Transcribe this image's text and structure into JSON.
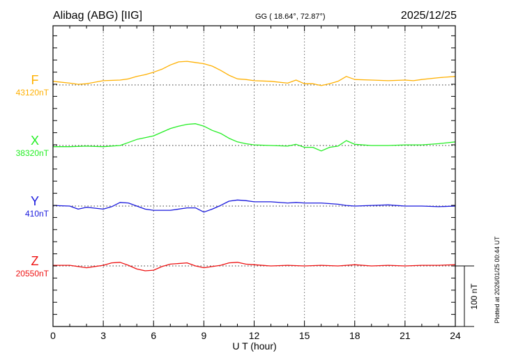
{
  "chart_data": {
    "type": "line",
    "title": "Alibag (ABG)  [IIG]",
    "subtitle": "GG ( 18.64°,  72.87°)",
    "date": "2025/12/25",
    "xlabel": "U T (hour)",
    "xlim": [
      0,
      24
    ],
    "xticks": [
      "0",
      "3",
      "6",
      "9",
      "12",
      "15",
      "18",
      "21",
      "24"
    ],
    "scale_bar_label": "100 nT",
    "scale_bar_nT": 100,
    "plotted_note": "Plotted at 2026/01/25 00:44 UT",
    "grid": "dotted vertical every 3 h, dotted baselines",
    "series": [
      {
        "name": "F",
        "baseline_label": "43120nT",
        "color": "#ffb000",
        "points": [
          [
            0,
            6
          ],
          [
            1,
            3
          ],
          [
            1.5,
            1
          ],
          [
            2,
            2
          ],
          [
            3,
            7
          ],
          [
            4,
            8
          ],
          [
            4.5,
            10
          ],
          [
            5,
            14
          ],
          [
            5.5,
            17
          ],
          [
            6,
            21
          ],
          [
            6.5,
            26
          ],
          [
            7,
            33
          ],
          [
            7.5,
            38
          ],
          [
            8,
            39
          ],
          [
            8.5,
            37
          ],
          [
            9,
            35
          ],
          [
            9.5,
            31
          ],
          [
            10,
            24
          ],
          [
            10.5,
            16
          ],
          [
            11,
            10
          ],
          [
            11.5,
            9
          ],
          [
            12,
            7
          ],
          [
            13,
            6
          ],
          [
            14,
            3
          ],
          [
            14.5,
            8
          ],
          [
            15,
            2
          ],
          [
            15.5,
            2
          ],
          [
            16,
            -1
          ],
          [
            16.5,
            2
          ],
          [
            17,
            6
          ],
          [
            17.5,
            14
          ],
          [
            18,
            9
          ],
          [
            19,
            8
          ],
          [
            20,
            7
          ],
          [
            21,
            8
          ],
          [
            21.5,
            7
          ],
          [
            22,
            9
          ],
          [
            23,
            12
          ],
          [
            24,
            14
          ]
        ]
      },
      {
        "name": "X",
        "baseline_label": "38320nT",
        "color": "#22ee22",
        "points": [
          [
            0,
            -2
          ],
          [
            1,
            -2
          ],
          [
            2,
            -1
          ],
          [
            3,
            -2
          ],
          [
            4,
            0
          ],
          [
            4.5,
            5
          ],
          [
            5,
            10
          ],
          [
            5.5,
            13
          ],
          [
            6,
            16
          ],
          [
            6.5,
            22
          ],
          [
            7,
            28
          ],
          [
            7.5,
            32
          ],
          [
            8,
            35
          ],
          [
            8.5,
            36
          ],
          [
            9,
            32
          ],
          [
            9.5,
            25
          ],
          [
            10,
            20
          ],
          [
            10.5,
            12
          ],
          [
            11,
            6
          ],
          [
            11.5,
            3
          ],
          [
            12,
            1
          ],
          [
            13,
            0
          ],
          [
            14,
            -1
          ],
          [
            14.5,
            2
          ],
          [
            15,
            -3
          ],
          [
            15.5,
            -3
          ],
          [
            16,
            -9
          ],
          [
            16.5,
            -3
          ],
          [
            17,
            -1
          ],
          [
            17.5,
            8
          ],
          [
            18,
            2
          ],
          [
            19,
            0
          ],
          [
            20,
            0
          ],
          [
            21,
            1
          ],
          [
            22,
            1
          ],
          [
            23,
            3
          ],
          [
            24,
            6
          ]
        ]
      },
      {
        "name": "Y",
        "baseline_label": "410nT",
        "color": "#1818dd",
        "points": [
          [
            0,
            1
          ],
          [
            1,
            0
          ],
          [
            1.5,
            -5
          ],
          [
            2,
            -2
          ],
          [
            3,
            -5
          ],
          [
            3.5,
            -1
          ],
          [
            4,
            6
          ],
          [
            4.5,
            5
          ],
          [
            5,
            0
          ],
          [
            5.5,
            -5
          ],
          [
            6,
            -7
          ],
          [
            7,
            -7
          ],
          [
            8,
            -3
          ],
          [
            8.5,
            -3
          ],
          [
            9,
            -10
          ],
          [
            9.5,
            -5
          ],
          [
            10,
            1
          ],
          [
            10.5,
            8
          ],
          [
            11,
            10
          ],
          [
            11.5,
            9
          ],
          [
            12,
            7
          ],
          [
            13,
            7
          ],
          [
            14,
            5
          ],
          [
            14.5,
            6
          ],
          [
            15,
            5
          ],
          [
            16,
            5
          ],
          [
            17,
            3
          ],
          [
            17.5,
            1
          ],
          [
            18,
            0
          ],
          [
            19,
            1
          ],
          [
            20,
            2
          ],
          [
            21,
            0
          ],
          [
            22,
            0
          ],
          [
            23,
            -1
          ],
          [
            24,
            0
          ]
        ]
      },
      {
        "name": "Z",
        "baseline_label": "20550nT",
        "color": "#ee1111",
        "points": [
          [
            0,
            1
          ],
          [
            1,
            1
          ],
          [
            2,
            -3
          ],
          [
            3,
            1
          ],
          [
            3.5,
            5
          ],
          [
            4,
            6
          ],
          [
            4.5,
            1
          ],
          [
            5,
            -5
          ],
          [
            5.5,
            -8
          ],
          [
            6,
            -7
          ],
          [
            6.5,
            -1
          ],
          [
            7,
            3
          ],
          [
            8,
            5
          ],
          [
            8.5,
            0
          ],
          [
            9,
            -3
          ],
          [
            10,
            1
          ],
          [
            10.5,
            5
          ],
          [
            11,
            6
          ],
          [
            11.5,
            3
          ],
          [
            12,
            2
          ],
          [
            13,
            0
          ],
          [
            14,
            1
          ],
          [
            15,
            0
          ],
          [
            16,
            1
          ],
          [
            17,
            0
          ],
          [
            18,
            2
          ],
          [
            19,
            0
          ],
          [
            20,
            1
          ],
          [
            21,
            0
          ],
          [
            22,
            1
          ],
          [
            23,
            1
          ],
          [
            24,
            2
          ]
        ]
      }
    ]
  }
}
